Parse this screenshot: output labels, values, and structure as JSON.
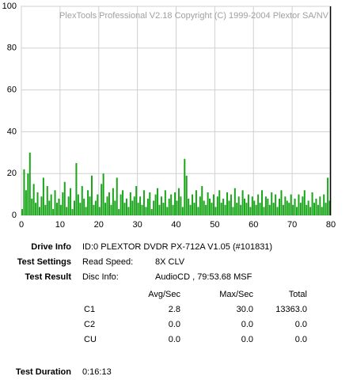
{
  "chart_data": {
    "type": "bar",
    "title": "PlexTools Professional V2.18 Copyright (C) 1999-2004 Plextor SA/NV",
    "color": "#19a519",
    "grid": true,
    "end_marker": 79.9,
    "xlim": [
      0,
      80
    ],
    "xticks": [
      0,
      10,
      20,
      30,
      40,
      50,
      60,
      70,
      80
    ],
    "ylim": [
      0,
      100
    ],
    "yticks": [
      0,
      20,
      40,
      60,
      80,
      100
    ],
    "x": [
      0,
      0.5,
      1,
      1.5,
      2,
      2.5,
      3,
      3.5,
      4,
      4.5,
      5,
      5.5,
      6,
      6.5,
      7,
      7.5,
      8,
      8.5,
      9,
      9.5,
      10,
      10.5,
      11,
      11.5,
      12,
      12.5,
      13,
      13.5,
      14,
      14.5,
      15,
      15.5,
      16,
      16.5,
      17,
      17.5,
      18,
      18.5,
      19,
      19.5,
      20,
      20.5,
      21,
      21.5,
      22,
      22.5,
      23,
      23.5,
      24,
      24.5,
      25,
      25.5,
      26,
      26.5,
      27,
      27.5,
      28,
      28.5,
      29,
      29.5,
      30,
      30.5,
      31,
      31.5,
      32,
      32.5,
      33,
      33.5,
      34,
      34.5,
      35,
      35.5,
      36,
      36.5,
      37,
      37.5,
      38,
      38.5,
      39,
      39.5,
      40,
      40.5,
      41,
      41.5,
      42,
      42.5,
      43,
      43.5,
      44,
      44.5,
      45,
      45.5,
      46,
      46.5,
      47,
      47.5,
      48,
      48.5,
      49,
      49.5,
      50,
      50.5,
      51,
      51.5,
      52,
      52.5,
      53,
      53.5,
      54,
      54.5,
      55,
      55.5,
      56,
      56.5,
      57,
      57.5,
      58,
      58.5,
      59,
      59.5,
      60,
      60.5,
      61,
      61.5,
      62,
      62.5,
      63,
      63.5,
      64,
      64.5,
      65,
      65.5,
      66,
      66.5,
      67,
      67.5,
      68,
      68.5,
      69,
      69.5,
      70,
      70.5,
      71,
      71.5,
      72,
      72.5,
      73,
      73.5,
      74,
      74.5,
      75,
      75.5,
      76,
      76.5,
      77,
      77.5,
      78,
      78.5,
      79,
      79.5
    ],
    "values": [
      3,
      22,
      12,
      20,
      30,
      8,
      15,
      6,
      11,
      4,
      9,
      18,
      5,
      14,
      7,
      10,
      3,
      12,
      6,
      8,
      5,
      11,
      16,
      4,
      9,
      13,
      3,
      7,
      25,
      10,
      6,
      14,
      8,
      4,
      12,
      9,
      19,
      5,
      7,
      10,
      4,
      15,
      20,
      6,
      9,
      11,
      5,
      13,
      7,
      18,
      3,
      10,
      12,
      6,
      8,
      4,
      11,
      7,
      9,
      14,
      6,
      9,
      5,
      12,
      4,
      8,
      11,
      3,
      7,
      10,
      13,
      5,
      9,
      6,
      12,
      4,
      8,
      10,
      5,
      11,
      7,
      13,
      9,
      4,
      27,
      19,
      8,
      5,
      10,
      6,
      12,
      4,
      9,
      14,
      7,
      5,
      11,
      8,
      6,
      10,
      4,
      9,
      12,
      6,
      8,
      5,
      11,
      7,
      10,
      4,
      13,
      6,
      9,
      5,
      12,
      8,
      6,
      10,
      4,
      9,
      7,
      5,
      10,
      6,
      12,
      4,
      9,
      8,
      5,
      11,
      6,
      10,
      4,
      8,
      12,
      5,
      9,
      7,
      6,
      10,
      5,
      8,
      4,
      10,
      6,
      9,
      12,
      5,
      7,
      4,
      11,
      6,
      8,
      5,
      9,
      4,
      10,
      6,
      18,
      7
    ]
  },
  "info": {
    "drive_info": {
      "label": "Drive Info",
      "value": "ID:0 PLEXTOR DVDR PX-712A V1.05 (#101831)"
    },
    "test_settings": {
      "label": "Test Settings",
      "read_speed_label": "Read Speed:",
      "read_speed": "8X CLV"
    },
    "test_result": {
      "label": "Test Result",
      "disc_info_label": "Disc Info:",
      "disc_info": "AudioCD , 79:53.68 MSF"
    },
    "table": {
      "headers": [
        "Avg/Sec",
        "Max/Sec",
        "Total"
      ],
      "rows": [
        [
          "C1",
          "2.8",
          "30.0",
          "13363.0"
        ],
        [
          "C2",
          "0.0",
          "0.0",
          "0.0"
        ],
        [
          "CU",
          "0.0",
          "0.0",
          "0.0"
        ]
      ]
    },
    "duration": {
      "label": "Test Duration",
      "value": "0:16:13"
    }
  }
}
